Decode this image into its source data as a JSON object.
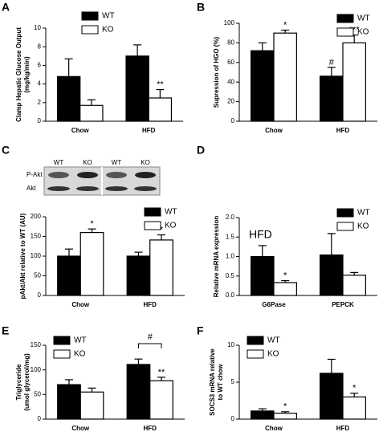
{
  "chart_data": [
    {
      "type": "bar",
      "panel": "A",
      "ylabel": [
        "Clamp Hepatic Glucose Output",
        "(mg/kg/min)"
      ],
      "categories": [
        "Chow",
        "HFD"
      ],
      "ylim": [
        0,
        10
      ],
      "yticks": [
        0,
        2,
        4,
        6,
        8,
        10
      ],
      "legend": "upper center",
      "series": [
        {
          "name": "WT",
          "color": "#000000",
          "values": [
            4.8,
            7.0
          ],
          "errors": [
            1.9,
            1.2
          ],
          "annotations": [
            null,
            null
          ]
        },
        {
          "name": "KO",
          "color": "#ffffff",
          "values": [
            1.7,
            2.5
          ],
          "errors": [
            0.6,
            0.9
          ],
          "annotations": [
            null,
            "**"
          ]
        }
      ]
    },
    {
      "type": "bar",
      "panel": "B",
      "ylabel": [
        "Supression of HGO (%)"
      ],
      "categories": [
        "Chow",
        "HFD"
      ],
      "ylim": [
        0,
        100
      ],
      "yticks": [
        0,
        20,
        40,
        60,
        80,
        100
      ],
      "legend": "upper right",
      "series": [
        {
          "name": "WT",
          "color": "#000000",
          "values": [
            72,
            46
          ],
          "errors": [
            8,
            9
          ],
          "annotations": [
            null,
            "#"
          ]
        },
        {
          "name": "KO",
          "color": "#ffffff",
          "values": [
            90,
            80
          ],
          "errors": [
            3,
            8
          ],
          "annotations": [
            "*",
            "***"
          ]
        }
      ]
    },
    {
      "type": "bar",
      "panel": "C",
      "ylabel": [
        "pAkt/Akt relative to WT (AU)"
      ],
      "blot": {
        "rows": [
          "P-Akt",
          "Akt"
        ],
        "lanes": [
          "WT",
          "KO",
          "WT",
          "KO"
        ]
      },
      "categories": [
        "Chow",
        "HFD"
      ],
      "ylim": [
        0,
        200
      ],
      "yticks": [
        0,
        50,
        100,
        150,
        200
      ],
      "legend": "upper right",
      "series": [
        {
          "name": "WT",
          "color": "#000000",
          "values": [
            100,
            100
          ],
          "errors": [
            18,
            10
          ],
          "annotations": [
            null,
            null
          ]
        },
        {
          "name": "KO",
          "color": "#ffffff",
          "values": [
            160,
            141
          ],
          "errors": [
            9,
            13
          ],
          "annotations": [
            "*",
            "*"
          ]
        }
      ]
    },
    {
      "type": "bar",
      "panel": "D",
      "ylabel": [
        "Relative mRNA expression"
      ],
      "inset_label": "HFD",
      "categories": [
        "G6Pase",
        "PEPCK"
      ],
      "ylim": [
        0,
        2.0
      ],
      "yticks": [
        {
          "value": 0,
          "label": "0.0"
        },
        0.5,
        {
          "value": 1,
          "label": "1.0"
        },
        1.5,
        {
          "value": 2,
          "label": "2.0"
        }
      ],
      "legend": "upper right",
      "series": [
        {
          "name": "WT",
          "color": "#000000",
          "values": [
            1.0,
            1.04
          ],
          "errors": [
            0.28,
            0.55
          ],
          "annotations": [
            null,
            null
          ]
        },
        {
          "name": "KO",
          "color": "#ffffff",
          "values": [
            0.33,
            0.52
          ],
          "errors": [
            0.05,
            0.07
          ],
          "annotations": [
            "*",
            null
          ]
        }
      ]
    },
    {
      "type": "bar",
      "panel": "E",
      "ylabel": [
        "Triglyceride",
        "(umol glycerol/mg)"
      ],
      "categories": [
        "Chow",
        "HFD"
      ],
      "ylim": [
        0,
        150
      ],
      "yticks": [
        0,
        50,
        100,
        150
      ],
      "legend": "upper left",
      "bracket_label": "#",
      "series": [
        {
          "name": "WT",
          "color": "#000000",
          "values": [
            70,
            111
          ],
          "errors": [
            10,
            11
          ],
          "annotations": [
            null,
            null
          ]
        },
        {
          "name": "KO",
          "color": "#ffffff",
          "values": [
            55,
            78
          ],
          "errors": [
            8,
            7
          ],
          "annotations": [
            null,
            "**"
          ]
        }
      ]
    },
    {
      "type": "bar",
      "panel": "F",
      "ylabel": [
        "SOCS3 mRNA relative",
        "to WT chow"
      ],
      "categories": [
        "Chow",
        "HFD"
      ],
      "ylim": [
        0,
        10
      ],
      "yticks": [
        0,
        5,
        10
      ],
      "legend": "upper left",
      "series": [
        {
          "name": "WT",
          "color": "#000000",
          "values": [
            1.1,
            6.2
          ],
          "errors": [
            0.3,
            1.9
          ],
          "annotations": [
            null,
            null
          ]
        },
        {
          "name": "KO",
          "color": "#ffffff",
          "values": [
            0.8,
            3.0
          ],
          "errors": [
            0.2,
            0.5
          ],
          "annotations": [
            "*",
            "*"
          ]
        }
      ]
    }
  ]
}
